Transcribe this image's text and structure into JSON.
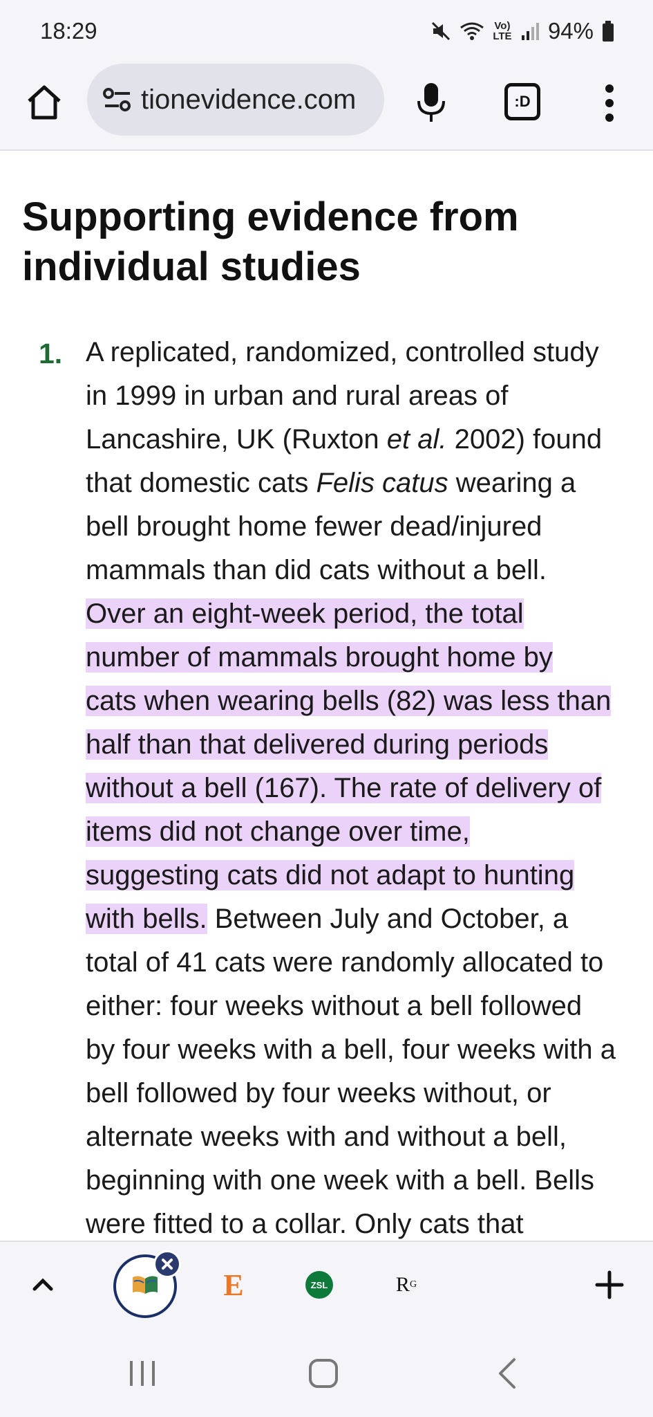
{
  "status_bar": {
    "time": "18:29",
    "battery": "94%",
    "icons": [
      "mute-icon",
      "wifi-icon",
      "lte-icon",
      "signal-icon",
      "battery-icon"
    ],
    "lte_top": "Vo)",
    "lte_bottom": "LTE"
  },
  "toolbar": {
    "url": "tionevidence.com",
    "tab_switcher_label": ":D",
    "icons": [
      "home-icon",
      "site-settings-icon",
      "mic-icon",
      "tab-switcher-icon",
      "more-menu-icon"
    ]
  },
  "article": {
    "heading": "Supporting evidence from individual studies",
    "item_number": "1.",
    "lines": {
      "l1": "A replicated, randomized, controlled study",
      "l2": "in 1999 in urban and rural areas of",
      "l3a": "Lancashire, UK (Ruxton ",
      "l3em": "et al.",
      "l3b": " 2002) found",
      "l4a": "that domestic cats ",
      "l4em": "Felis catus",
      "l4b": " wearing a",
      "l5": "bell brought home fewer dead/injured",
      "l6": "mammals than did cats without a bell.",
      "h1": "Over an eight-week period, the total",
      "h2": "number of mammals brought home by",
      "h3": "cats when wearing bells (82) was less than",
      "h4": "half than that delivered during periods",
      "h5": "without a bell (167). The rate of delivery of",
      "h6": "items did not change over time,",
      "h7": "suggesting cats did not adapt to hunting",
      "h8": "with bells.",
      "l8b": " Between July and October, a",
      "l9": "total of 41 cats were randomly allocated to",
      "l10": "either: four weeks without a bell followed",
      "l11": "by four weeks with a bell, four weeks with a",
      "l12": "bell followed by four weeks without, or",
      "l13": "alternate weeks with and without a bell,",
      "l14": "beginning with one week with a bell. Bells",
      "l15": "were fitted to a collar. Only cats that"
    },
    "highlight_color": "#ead2f8",
    "number_color": "#1e6b34"
  },
  "tab_strip": {
    "tabs": [
      {
        "name": "active-tab",
        "icon": "books-icon"
      },
      {
        "name": "tab-e",
        "label": "E"
      },
      {
        "name": "tab-zsl",
        "label": "ZSL"
      },
      {
        "name": "tab-rg",
        "label": "R",
        "sup": "G"
      }
    ],
    "icons": [
      "chevron-up-icon",
      "close-icon",
      "plus-icon"
    ]
  },
  "nav_bar": {
    "icons": [
      "recent-apps-icon",
      "home-nav-icon",
      "back-icon"
    ]
  }
}
